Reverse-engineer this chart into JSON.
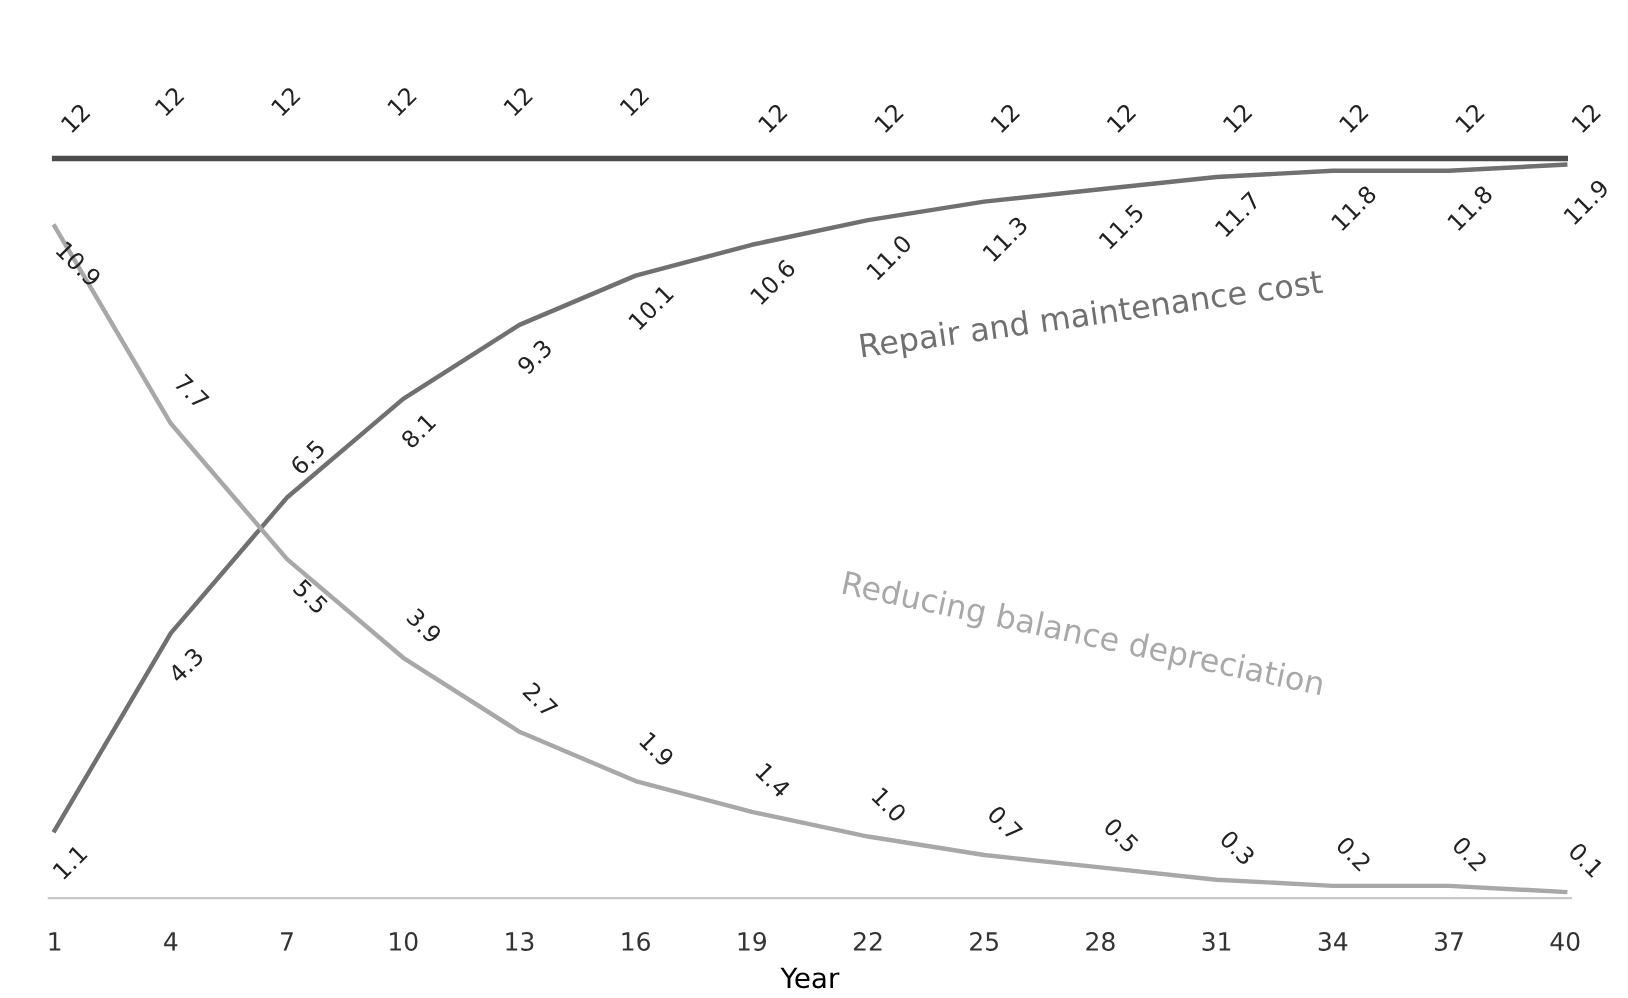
{
  "chart_data": {
    "type": "line",
    "xlabel": "Year",
    "categories": [
      "1",
      "4",
      "7",
      "10",
      "13",
      "16",
      "19",
      "22",
      "25",
      "28",
      "31",
      "34",
      "37",
      "40"
    ],
    "series": [
      {
        "color": "#4d4d4d",
        "values": [
          12,
          12,
          12,
          12,
          12,
          12,
          12,
          12,
          12,
          12,
          12,
          12,
          12,
          12
        ]
      },
      {
        "name": "Repair and maintenance cost",
        "color": "#707070",
        "values": [
          1.1,
          4.3,
          6.5,
          8.1,
          9.3,
          10.1,
          10.6,
          11.0,
          11.3,
          11.5,
          11.7,
          11.8,
          11.8,
          11.9
        ],
        "value_labels": [
          "1.1",
          "4.3",
          "6.5",
          "8.1",
          "9.3",
          "10.1",
          "10.6",
          "11.0",
          "11.3",
          "11.5",
          "11.7",
          "11.8",
          "11.8",
          "11.9"
        ]
      },
      {
        "name": "Reducing balance depreciation",
        "color": "#a8a8a8",
        "values": [
          10.9,
          7.7,
          5.5,
          3.9,
          2.7,
          1.9,
          1.4,
          1.0,
          0.7,
          0.5,
          0.3,
          0.2,
          0.2,
          0.1
        ],
        "value_labels": [
          "10.9",
          "7.7",
          "5.5",
          "3.9",
          "2.7",
          "1.9",
          "1.4",
          "1.0",
          "0.7",
          "0.5",
          "0.3",
          "0.2",
          "0.2",
          "0.1"
        ]
      }
    ],
    "data_labels": true,
    "grid": false,
    "legend": false,
    "marker": "none",
    "line_style": "solid"
  }
}
